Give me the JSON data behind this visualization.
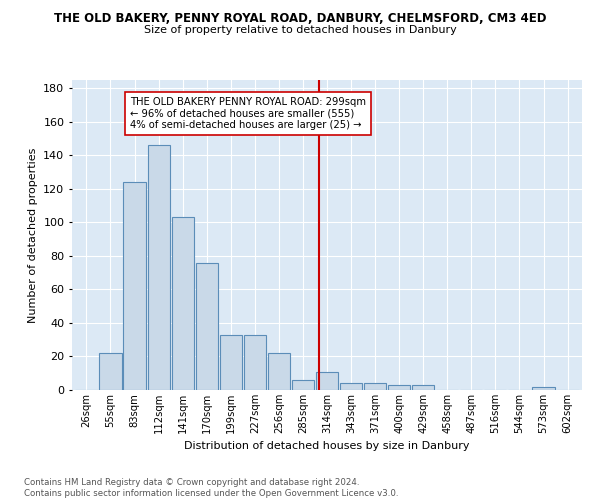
{
  "title": "THE OLD BAKERY, PENNY ROYAL ROAD, DANBURY, CHELMSFORD, CM3 4ED",
  "subtitle": "Size of property relative to detached houses in Danbury",
  "xlabel": "Distribution of detached houses by size in Danbury",
  "ylabel": "Number of detached properties",
  "footer_line1": "Contains HM Land Registry data © Crown copyright and database right 2024.",
  "footer_line2": "Contains public sector information licensed under the Open Government Licence v3.0.",
  "bar_labels": [
    "26sqm",
    "55sqm",
    "83sqm",
    "112sqm",
    "141sqm",
    "170sqm",
    "199sqm",
    "227sqm",
    "256sqm",
    "285sqm",
    "314sqm",
    "343sqm",
    "371sqm",
    "400sqm",
    "429sqm",
    "458sqm",
    "487sqm",
    "516sqm",
    "544sqm",
    "573sqm",
    "602sqm"
  ],
  "bar_values": [
    0,
    22,
    124,
    146,
    103,
    76,
    33,
    33,
    22,
    6,
    11,
    4,
    4,
    3,
    3,
    0,
    0,
    0,
    0,
    2,
    0
  ],
  "bar_color": "#c9d9e8",
  "bar_edge_color": "#5b8db8",
  "background_color": "#dce9f5",
  "vline_x": 9.67,
  "vline_color": "#cc0000",
  "annotation_text": "THE OLD BAKERY PENNY ROYAL ROAD: 299sqm\n← 96% of detached houses are smaller (555)\n4% of semi-detached houses are larger (25) →",
  "annotation_box_color": "#ffffff",
  "annotation_box_edge": "#cc0000",
  "ylim": [
    0,
    185
  ],
  "yticks": [
    0,
    20,
    40,
    60,
    80,
    100,
    120,
    140,
    160,
    180
  ]
}
